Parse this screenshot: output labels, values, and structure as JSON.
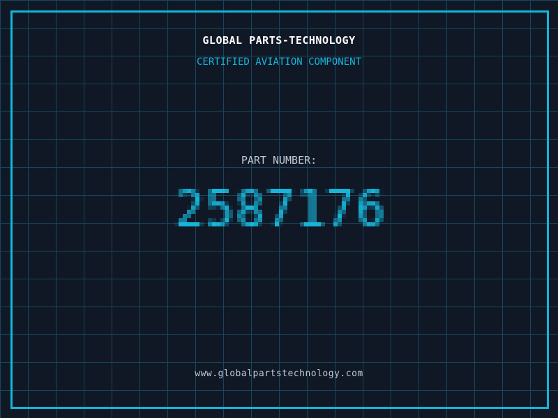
{
  "header": {
    "title": "GLOBAL PARTS-TECHNOLOGY",
    "subtitle": "CERTIFIED AVIATION COMPONENT"
  },
  "part": {
    "label": "PART NUMBER:",
    "number": "2587176"
  },
  "footer": {
    "website": "www.globalpartstechnology.com"
  },
  "colors": {
    "background": "#101826",
    "grid_line": "#18465c",
    "frame": "#12b6db",
    "accent_cyan": "#19b4d8",
    "muted_text": "#c0c8d4",
    "title_text": "#ffffff"
  }
}
